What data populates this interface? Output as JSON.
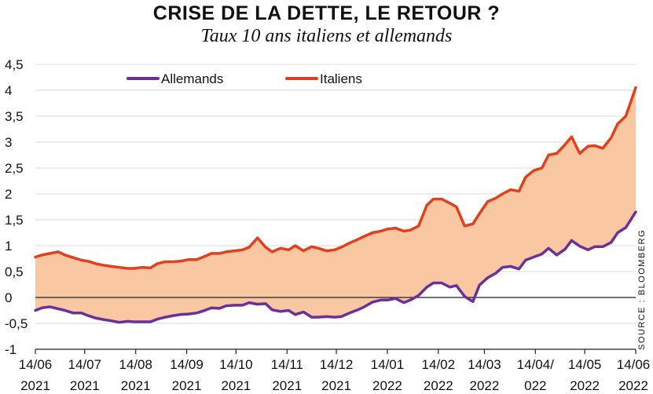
{
  "header": {
    "title": "CRISE DE LA DETTE, LE RETOUR ?",
    "subtitle": "Taux 10 ans italiens et allemands"
  },
  "source": "SOURCE : BLOOMBERG",
  "colors": {
    "allemands": "#6b2f9a",
    "italiens": "#e2401c",
    "fill": "#f9c8a2",
    "grid": "#d9d9d9"
  },
  "chart_data": {
    "type": "line",
    "title": "CRISE DE LA DETTE, LE RETOUR ?",
    "subtitle": "Taux 10 ans italiens et allemands",
    "legend_placement": "top-left",
    "grid": "horizontal",
    "ylim": [
      -1,
      4.5
    ],
    "yticks": [
      "-1",
      "-0,5",
      "0",
      "0,5",
      "1",
      "1,5",
      "2",
      "2,5",
      "3",
      "3,5",
      "4",
      "4,5"
    ],
    "ytick_values": [
      -1,
      -0.5,
      0,
      0.5,
      1,
      1.5,
      2,
      2.5,
      3,
      3.5,
      4,
      4.5
    ],
    "xlim": [
      "2021-06-14",
      "2022-06-14"
    ],
    "xticks": [
      {
        "date": "2021-06-14",
        "line1": "14/06",
        "line2": "2021"
      },
      {
        "date": "2021-07-14",
        "line1": "14/07",
        "line2": "2021"
      },
      {
        "date": "2021-08-14",
        "line1": "14/08",
        "line2": "2021"
      },
      {
        "date": "2021-09-14",
        "line1": "14/09",
        "line2": "2021"
      },
      {
        "date": "2021-10-14",
        "line1": "14/10",
        "line2": "2021"
      },
      {
        "date": "2021-11-14",
        "line1": "14/11",
        "line2": "2021"
      },
      {
        "date": "2021-12-14",
        "line1": "14/12",
        "line2": "2021"
      },
      {
        "date": "2022-01-14",
        "line1": "14/01",
        "line2": "2022"
      },
      {
        "date": "2022-02-14",
        "line1": "14/02",
        "line2": "2022"
      },
      {
        "date": "2022-03-14",
        "line1": "14/03",
        "line2": "2022"
      },
      {
        "date": "2022-04-14",
        "line1": "14/04/",
        "line2": "022"
      },
      {
        "date": "2022-05-14",
        "line1": "14/05",
        "line2": "2022"
      },
      {
        "date": "2022-06-14",
        "line1": "14/06",
        "line2": "2022"
      }
    ],
    "series": [
      {
        "name": "Allemands",
        "points": [
          [
            "2021-06-14",
            -0.25
          ],
          [
            "2021-06-18",
            -0.2
          ],
          [
            "2021-06-23",
            -0.18
          ],
          [
            "2021-06-28",
            -0.22
          ],
          [
            "2021-07-02",
            -0.25
          ],
          [
            "2021-07-07",
            -0.3
          ],
          [
            "2021-07-12",
            -0.3
          ],
          [
            "2021-07-16",
            -0.35
          ],
          [
            "2021-07-21",
            -0.4
          ],
          [
            "2021-07-26",
            -0.43
          ],
          [
            "2021-07-30",
            -0.45
          ],
          [
            "2021-08-04",
            -0.48
          ],
          [
            "2021-08-09",
            -0.46
          ],
          [
            "2021-08-13",
            -0.47
          ],
          [
            "2021-08-18",
            -0.47
          ],
          [
            "2021-08-23",
            -0.47
          ],
          [
            "2021-08-27",
            -0.42
          ],
          [
            "2021-09-01",
            -0.38
          ],
          [
            "2021-09-06",
            -0.35
          ],
          [
            "2021-09-10",
            -0.33
          ],
          [
            "2021-09-15",
            -0.32
          ],
          [
            "2021-09-20",
            -0.3
          ],
          [
            "2021-09-24",
            -0.26
          ],
          [
            "2021-09-29",
            -0.2
          ],
          [
            "2021-10-04",
            -0.21
          ],
          [
            "2021-10-08",
            -0.16
          ],
          [
            "2021-10-13",
            -0.15
          ],
          [
            "2021-10-18",
            -0.15
          ],
          [
            "2021-10-22",
            -0.1
          ],
          [
            "2021-10-27",
            -0.13
          ],
          [
            "2021-11-01",
            -0.12
          ],
          [
            "2021-11-05",
            -0.24
          ],
          [
            "2021-11-10",
            -0.27
          ],
          [
            "2021-11-15",
            -0.25
          ],
          [
            "2021-11-19",
            -0.33
          ],
          [
            "2021-11-24",
            -0.28
          ],
          [
            "2021-11-29",
            -0.38
          ],
          [
            "2021-12-03",
            -0.38
          ],
          [
            "2021-12-08",
            -0.37
          ],
          [
            "2021-12-13",
            -0.38
          ],
          [
            "2021-12-17",
            -0.37
          ],
          [
            "2021-12-22",
            -0.3
          ],
          [
            "2021-12-27",
            -0.24
          ],
          [
            "2021-12-31",
            -0.18
          ],
          [
            "2022-01-05",
            -0.09
          ],
          [
            "2022-01-10",
            -0.05
          ],
          [
            "2022-01-14",
            -0.05
          ],
          [
            "2022-01-19",
            -0.02
          ],
          [
            "2022-01-24",
            -0.1
          ],
          [
            "2022-01-28",
            -0.05
          ],
          [
            "2022-02-02",
            0.04
          ],
          [
            "2022-02-07",
            0.2
          ],
          [
            "2022-02-11",
            0.28
          ],
          [
            "2022-02-16",
            0.28
          ],
          [
            "2022-02-21",
            0.2
          ],
          [
            "2022-02-25",
            0.23
          ],
          [
            "2022-03-02",
            0.02
          ],
          [
            "2022-03-07",
            -0.08
          ],
          [
            "2022-03-11",
            0.24
          ],
          [
            "2022-03-16",
            0.38
          ],
          [
            "2022-03-21",
            0.47
          ],
          [
            "2022-03-25",
            0.58
          ],
          [
            "2022-03-30",
            0.6
          ],
          [
            "2022-04-04",
            0.55
          ],
          [
            "2022-04-08",
            0.72
          ],
          [
            "2022-04-13",
            0.78
          ],
          [
            "2022-04-18",
            0.84
          ],
          [
            "2022-04-22",
            0.95
          ],
          [
            "2022-04-27",
            0.82
          ],
          [
            "2022-05-02",
            0.93
          ],
          [
            "2022-05-06",
            1.1
          ],
          [
            "2022-05-11",
            0.99
          ],
          [
            "2022-05-16",
            0.92
          ],
          [
            "2022-05-20",
            0.98
          ],
          [
            "2022-05-25",
            0.98
          ],
          [
            "2022-05-30",
            1.06
          ],
          [
            "2022-06-03",
            1.25
          ],
          [
            "2022-06-08",
            1.35
          ],
          [
            "2022-06-14",
            1.65
          ]
        ]
      },
      {
        "name": "Italiens",
        "points": [
          [
            "2021-06-14",
            0.78
          ],
          [
            "2021-06-18",
            0.82
          ],
          [
            "2021-06-23",
            0.85
          ],
          [
            "2021-06-28",
            0.88
          ],
          [
            "2021-07-02",
            0.82
          ],
          [
            "2021-07-07",
            0.77
          ],
          [
            "2021-07-12",
            0.72
          ],
          [
            "2021-07-16",
            0.7
          ],
          [
            "2021-07-21",
            0.65
          ],
          [
            "2021-07-26",
            0.62
          ],
          [
            "2021-07-30",
            0.6
          ],
          [
            "2021-08-04",
            0.58
          ],
          [
            "2021-08-09",
            0.56
          ],
          [
            "2021-08-13",
            0.56
          ],
          [
            "2021-08-18",
            0.58
          ],
          [
            "2021-08-23",
            0.57
          ],
          [
            "2021-08-27",
            0.65
          ],
          [
            "2021-09-01",
            0.69
          ],
          [
            "2021-09-06",
            0.69
          ],
          [
            "2021-09-10",
            0.7
          ],
          [
            "2021-09-15",
            0.73
          ],
          [
            "2021-09-20",
            0.73
          ],
          [
            "2021-09-24",
            0.78
          ],
          [
            "2021-09-29",
            0.85
          ],
          [
            "2021-10-04",
            0.85
          ],
          [
            "2021-10-08",
            0.88
          ],
          [
            "2021-10-13",
            0.9
          ],
          [
            "2021-10-18",
            0.92
          ],
          [
            "2021-10-22",
            0.97
          ],
          [
            "2021-10-27",
            1.15
          ],
          [
            "2021-11-01",
            0.97
          ],
          [
            "2021-11-05",
            0.88
          ],
          [
            "2021-11-10",
            0.95
          ],
          [
            "2021-11-15",
            0.92
          ],
          [
            "2021-11-19",
            1.0
          ],
          [
            "2021-11-24",
            0.9
          ],
          [
            "2021-11-29",
            0.98
          ],
          [
            "2021-12-03",
            0.95
          ],
          [
            "2021-12-08",
            0.9
          ],
          [
            "2021-12-13",
            0.92
          ],
          [
            "2021-12-17",
            0.97
          ],
          [
            "2021-12-22",
            1.05
          ],
          [
            "2021-12-27",
            1.12
          ],
          [
            "2021-12-31",
            1.18
          ],
          [
            "2022-01-05",
            1.25
          ],
          [
            "2022-01-10",
            1.28
          ],
          [
            "2022-01-14",
            1.32
          ],
          [
            "2022-01-19",
            1.34
          ],
          [
            "2022-01-24",
            1.28
          ],
          [
            "2022-01-28",
            1.3
          ],
          [
            "2022-02-02",
            1.38
          ],
          [
            "2022-02-07",
            1.78
          ],
          [
            "2022-02-11",
            1.9
          ],
          [
            "2022-02-16",
            1.9
          ],
          [
            "2022-02-21",
            1.82
          ],
          [
            "2022-02-25",
            1.75
          ],
          [
            "2022-03-02",
            1.38
          ],
          [
            "2022-03-07",
            1.42
          ],
          [
            "2022-03-11",
            1.62
          ],
          [
            "2022-03-16",
            1.85
          ],
          [
            "2022-03-21",
            1.92
          ],
          [
            "2022-03-25",
            2.0
          ],
          [
            "2022-03-30",
            2.08
          ],
          [
            "2022-04-04",
            2.05
          ],
          [
            "2022-04-08",
            2.32
          ],
          [
            "2022-04-13",
            2.45
          ],
          [
            "2022-04-18",
            2.5
          ],
          [
            "2022-04-22",
            2.75
          ],
          [
            "2022-04-27",
            2.78
          ],
          [
            "2022-05-02",
            2.95
          ],
          [
            "2022-05-06",
            3.1
          ],
          [
            "2022-05-11",
            2.78
          ],
          [
            "2022-05-16",
            2.92
          ],
          [
            "2022-05-20",
            2.93
          ],
          [
            "2022-05-25",
            2.88
          ],
          [
            "2022-05-30",
            3.08
          ],
          [
            "2022-06-03",
            3.35
          ],
          [
            "2022-06-08",
            3.5
          ],
          [
            "2022-06-14",
            4.05
          ]
        ]
      }
    ]
  }
}
